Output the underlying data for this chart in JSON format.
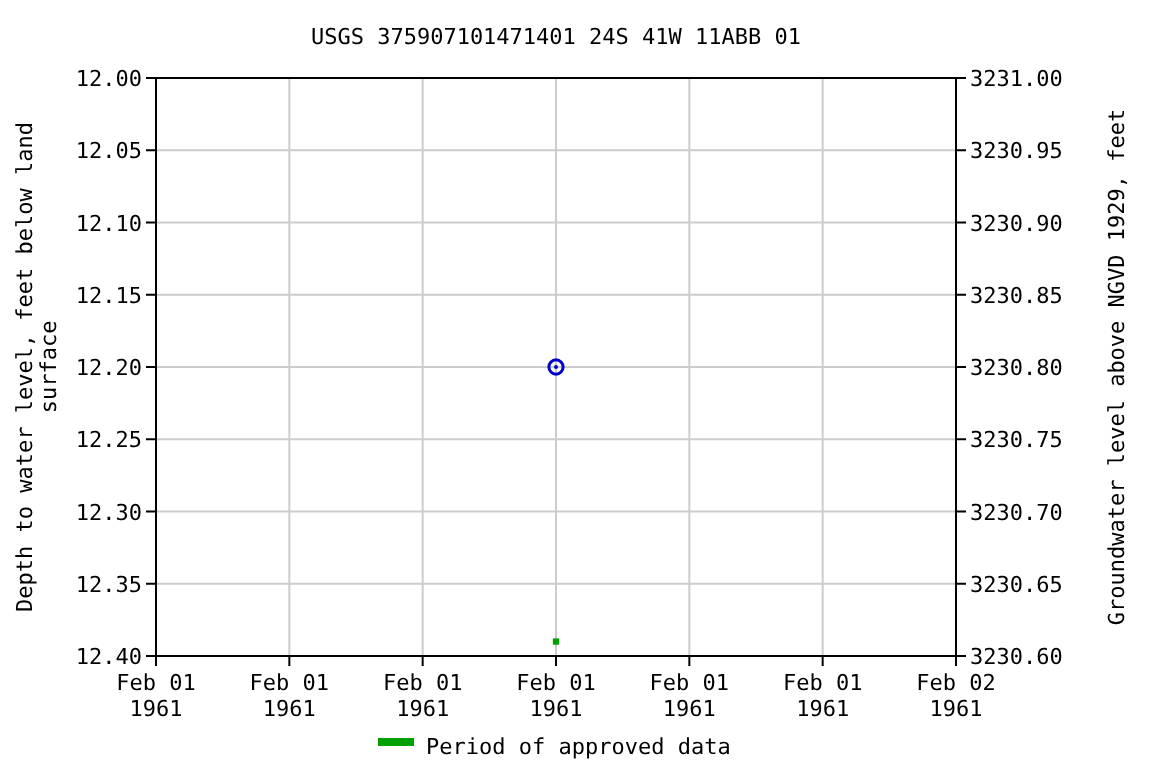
{
  "chart_data": {
    "type": "scatter",
    "title": "USGS 375907101471401 24S 41W 11ABB 01",
    "ylabel": "Depth to water level, feet below land surface",
    "y2label": "Groundwater level above NGVD 1929, feet",
    "xlim": [
      "1961-02-01T00:00",
      "1961-02-02T00:00"
    ],
    "xticks": [
      {
        "value": "1961-02-01T00:00",
        "label": "Feb 01\n1961"
      },
      {
        "value": "1961-02-01T04:00",
        "label": "Feb 01\n1961"
      },
      {
        "value": "1961-02-01T08:00",
        "label": "Feb 01\n1961"
      },
      {
        "value": "1961-02-01T12:00",
        "label": "Feb 01\n1961"
      },
      {
        "value": "1961-02-01T16:00",
        "label": "Feb 01\n1961"
      },
      {
        "value": "1961-02-01T20:00",
        "label": "Feb 01\n1961"
      },
      {
        "value": "1961-02-02T00:00",
        "label": "Feb 02\n1961"
      }
    ],
    "ylim": [
      12.4,
      12.0
    ],
    "yticks": [
      {
        "value": 12.0,
        "label": "12.00"
      },
      {
        "value": 12.05,
        "label": "12.05"
      },
      {
        "value": 12.1,
        "label": "12.10"
      },
      {
        "value": 12.15,
        "label": "12.15"
      },
      {
        "value": 12.2,
        "label": "12.20"
      },
      {
        "value": 12.25,
        "label": "12.25"
      },
      {
        "value": 12.3,
        "label": "12.30"
      },
      {
        "value": 12.35,
        "label": "12.35"
      },
      {
        "value": 12.4,
        "label": "12.40"
      }
    ],
    "y2lim": [
      3230.6,
      3231.0
    ],
    "y2ticks": [
      {
        "value": 3231.0,
        "label": "3231.00"
      },
      {
        "value": 3230.95,
        "label": "3230.95"
      },
      {
        "value": 3230.9,
        "label": "3230.90"
      },
      {
        "value": 3230.85,
        "label": "3230.85"
      },
      {
        "value": 3230.8,
        "label": "3230.80"
      },
      {
        "value": 3230.75,
        "label": "3230.75"
      },
      {
        "value": 3230.7,
        "label": "3230.70"
      },
      {
        "value": 3230.65,
        "label": "3230.65"
      },
      {
        "value": 3230.6,
        "label": "3230.60"
      }
    ],
    "grid": true,
    "legend": "bottom",
    "series": [
      {
        "color": "#0000cc",
        "marker": "circle",
        "x": [
          "1961-02-01T12:00"
        ],
        "values": [
          12.2
        ]
      },
      {
        "name": "Period of approved data",
        "color": "#00a000",
        "marker": "square",
        "x": [
          "1961-02-01T12:00"
        ],
        "values": [
          12.39
        ]
      }
    ]
  }
}
